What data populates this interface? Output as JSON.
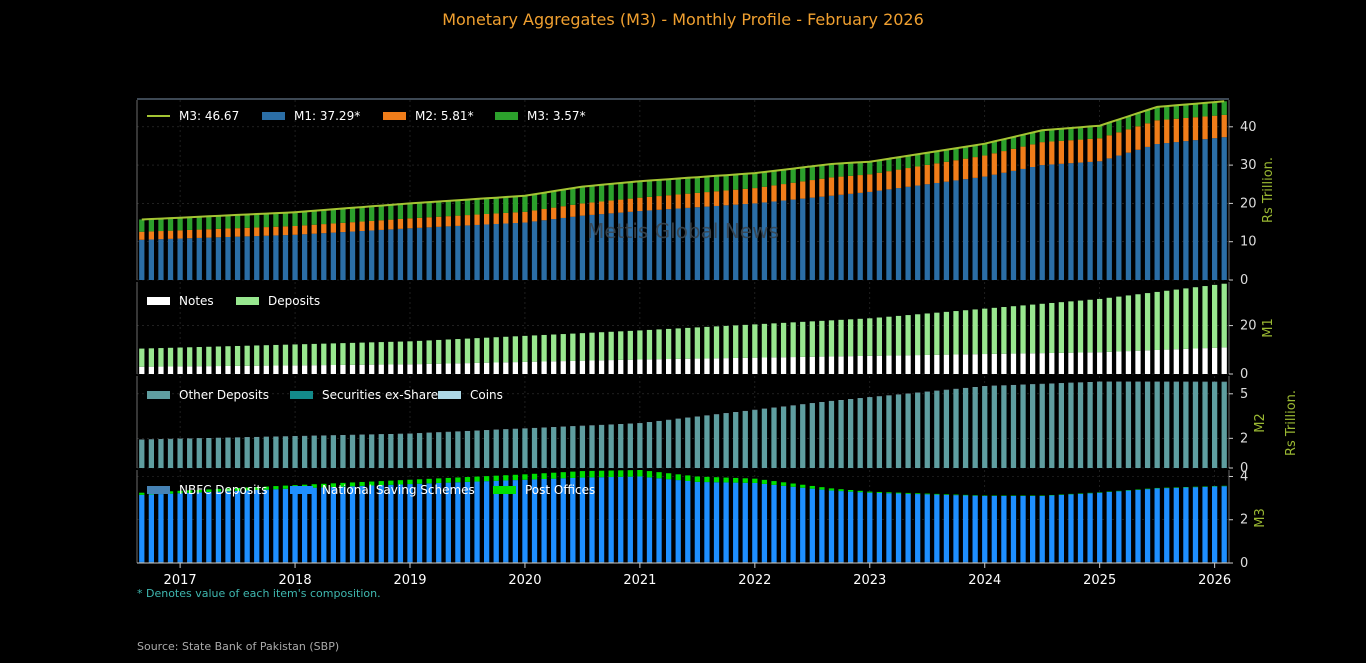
{
  "title": "Monetary Aggregates (M3) - Monthly Profile - February 2026",
  "footnote": "* Denotes value of each item's composition.",
  "source": "Source: State Bank of Pakistan (SBP)",
  "watermark": "Mettis Global News",
  "colors": {
    "background": "#000000",
    "title": "#f0a030",
    "axis_label": "#9ab832",
    "m1": "#2b6ea6",
    "m2": "#f07d1a",
    "m3": "#2ca02c",
    "total_line": "#a3c433",
    "notes": "#ffffff",
    "deposits": "#98e78f",
    "other_deposits": "#5f9ea0",
    "securities": "#138a8a",
    "coins": "#add8e6",
    "nbfc": "#4682b4",
    "nss": "#1e8fff",
    "post_offices": "#00e000"
  },
  "chart_data": {
    "type": "bar",
    "x_start": "2016-09",
    "x_end": "2026-02",
    "x_ticks": [
      "2017",
      "2018",
      "2019",
      "2020",
      "2021",
      "2022",
      "2023",
      "2024",
      "2025",
      "2026"
    ],
    "panels": [
      {
        "id": "m3_total",
        "type": "stacked-bar+line",
        "ylabel": "Rs Trillion.",
        "ylim": [
          0,
          47
        ],
        "yticks": [
          0,
          10,
          20,
          30,
          40
        ],
        "legend": [
          "M3: 46.67",
          "M1: 37.29*",
          "M2: 5.81*",
          "M3: 3.57*"
        ],
        "keypoints": [
          {
            "date": "2016-09",
            "m1": 10.5,
            "m2": 2.1,
            "m3": 3.2
          },
          {
            "date": "2018-01",
            "m1": 11.8,
            "m2": 2.3,
            "m3": 3.6
          },
          {
            "date": "2019-01",
            "m1": 13.5,
            "m2": 2.6,
            "m3": 3.9
          },
          {
            "date": "2020-01",
            "m1": 15.0,
            "m2": 2.8,
            "m3": 4.2
          },
          {
            "date": "2020-07",
            "m1": 16.8,
            "m2": 3.2,
            "m3": 4.4
          },
          {
            "date": "2021-01",
            "m1": 18.0,
            "m2": 3.5,
            "m3": 4.3
          },
          {
            "date": "2022-01",
            "m1": 20.0,
            "m2": 4.0,
            "m3": 3.9
          },
          {
            "date": "2022-09",
            "m1": 22.0,
            "m2": 4.8,
            "m3": 3.5
          },
          {
            "date": "2023-01",
            "m1": 23.0,
            "m2": 4.6,
            "m3": 3.3
          },
          {
            "date": "2024-01",
            "m1": 27.0,
            "m2": 5.5,
            "m3": 3.1
          },
          {
            "date": "2024-07",
            "m1": 30.0,
            "m2": 6.0,
            "m3": 3.1
          },
          {
            "date": "2025-01",
            "m1": 31.0,
            "m2": 6.0,
            "m3": 3.3
          },
          {
            "date": "2025-07",
            "m1": 35.5,
            "m2": 6.2,
            "m3": 3.5
          },
          {
            "date": "2026-02",
            "m1": 37.29,
            "m2": 5.81,
            "m3": 3.57
          }
        ]
      },
      {
        "id": "m1",
        "type": "stacked-bar",
        "ylabel": "M1",
        "ylim": [
          0,
          38
        ],
        "yticks": [
          0,
          20
        ],
        "legend": [
          "Notes",
          "Deposits"
        ],
        "keypoints": [
          {
            "date": "2016-09",
            "notes": 3.0,
            "deposits": 7.5
          },
          {
            "date": "2019-01",
            "notes": 4.0,
            "deposits": 9.5
          },
          {
            "date": "2021-01",
            "notes": 6.0,
            "deposits": 12.0
          },
          {
            "date": "2023-01",
            "notes": 7.5,
            "deposits": 15.5
          },
          {
            "date": "2025-01",
            "notes": 9.0,
            "deposits": 22.0
          },
          {
            "date": "2026-02",
            "notes": 11.0,
            "deposits": 26.29
          }
        ]
      },
      {
        "id": "m2",
        "type": "stacked-bar",
        "ylabel": "M2",
        "ylim": [
          0,
          6.2
        ],
        "yticks": [
          0,
          2,
          5
        ],
        "legend": [
          "Other Deposits",
          "Securities ex-Shares",
          "Coins"
        ],
        "keypoints": [
          {
            "date": "2016-09",
            "other_deposits": 1.9,
            "securities": 0.0,
            "coins": 0.02
          },
          {
            "date": "2019-01",
            "other_deposits": 2.3,
            "securities": 0.0,
            "coins": 0.02
          },
          {
            "date": "2021-01",
            "other_deposits": 3.0,
            "securities": 0.0,
            "coins": 0.02
          },
          {
            "date": "2022-09",
            "other_deposits": 4.5,
            "securities": 0.0,
            "coins": 0.02
          },
          {
            "date": "2024-01",
            "other_deposits": 5.5,
            "securities": 0.0,
            "coins": 0.02
          },
          {
            "date": "2025-01",
            "other_deposits": 5.8,
            "securities": 0.0,
            "coins": 0.02
          },
          {
            "date": "2026-02",
            "other_deposits": 5.79,
            "securities": 0.0,
            "coins": 0.02
          }
        ]
      },
      {
        "id": "m3",
        "type": "stacked-bar",
        "ylabel": "M3",
        "ylim": [
          0,
          4.3
        ],
        "yticks": [
          0,
          2,
          4
        ],
        "legend": [
          "NBFC Deposits",
          "National Saving Schemes",
          "Post Offices"
        ],
        "keypoints": [
          {
            "date": "2016-09",
            "nbfc": 0.05,
            "nss": 3.1,
            "post_offices": 0.1
          },
          {
            "date": "2018-01",
            "nbfc": 0.05,
            "nss": 3.4,
            "post_offices": 0.15
          },
          {
            "date": "2019-01",
            "nbfc": 0.05,
            "nss": 3.6,
            "post_offices": 0.2
          },
          {
            "date": "2020-01",
            "nbfc": 0.05,
            "nss": 3.8,
            "post_offices": 0.25
          },
          {
            "date": "2020-07",
            "nbfc": 0.05,
            "nss": 3.9,
            "post_offices": 0.3
          },
          {
            "date": "2021-01",
            "nbfc": 0.05,
            "nss": 3.95,
            "post_offices": 0.3
          },
          {
            "date": "2021-07",
            "nbfc": 0.05,
            "nss": 3.7,
            "post_offices": 0.25
          },
          {
            "date": "2022-01",
            "nbfc": 0.05,
            "nss": 3.65,
            "post_offices": 0.2
          },
          {
            "date": "2022-09",
            "nbfc": 0.05,
            "nss": 3.3,
            "post_offices": 0.1
          },
          {
            "date": "2023-01",
            "nbfc": 0.05,
            "nss": 3.2,
            "post_offices": 0.05
          },
          {
            "date": "2024-01",
            "nbfc": 0.05,
            "nss": 3.05,
            "post_offices": 0.02
          },
          {
            "date": "2024-07",
            "nbfc": 0.05,
            "nss": 3.05,
            "post_offices": 0.02
          },
          {
            "date": "2025-01",
            "nbfc": 0.05,
            "nss": 3.2,
            "post_offices": 0.02
          },
          {
            "date": "2025-07",
            "nbfc": 0.05,
            "nss": 3.4,
            "post_offices": 0.02
          },
          {
            "date": "2026-02",
            "nbfc": 0.05,
            "nss": 3.5,
            "post_offices": 0.02
          }
        ]
      }
    ]
  }
}
